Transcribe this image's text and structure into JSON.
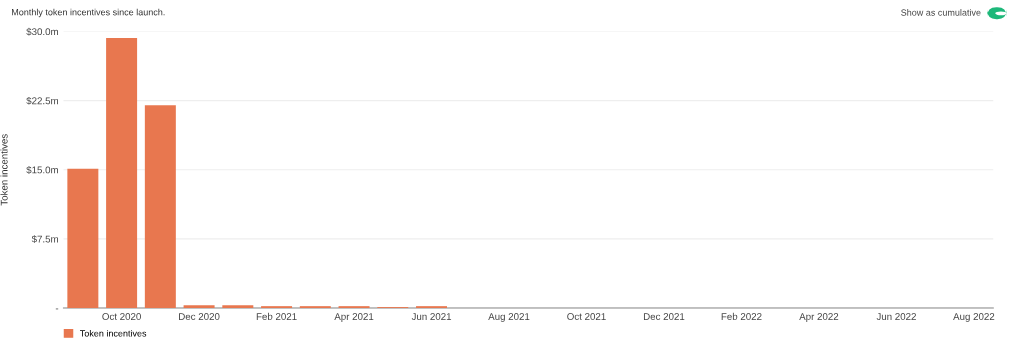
{
  "chart_data": {
    "type": "bar",
    "title": "Monthly token incentives since launch.",
    "ylabel": "Token incentives",
    "annotations": [
      "Show as cumulative"
    ],
    "categories": [
      null,
      "Oct 2020",
      null,
      "Dec 2020",
      null,
      "Feb 2021",
      null,
      "Apr 2021",
      null,
      "Jun 2021",
      null,
      "Aug 2021",
      null,
      "Oct 2021",
      null,
      "Dec 2021",
      null,
      "Feb 2022",
      null,
      "Apr 2022",
      null,
      "Jun 2022",
      null,
      "Aug 2022"
    ],
    "series": [
      {
        "name": "Token incentives",
        "color": "#e8774f",
        "values": [
          15.1,
          29.3,
          22.0,
          0.3,
          0.3,
          0.2,
          0.2,
          0.2,
          0.1,
          0.2,
          0,
          0,
          0,
          0,
          0,
          0,
          0,
          0,
          0,
          0,
          0,
          0,
          0,
          0
        ]
      }
    ],
    "ylim": [
      0,
      30
    ],
    "yticks": [
      {
        "value": 0,
        "label": "-"
      },
      {
        "value": 7.5,
        "label": "$7.5m"
      },
      {
        "value": 15,
        "label": "$15.0m"
      },
      {
        "value": 22.5,
        "label": "$22.5m"
      },
      {
        "value": 30,
        "label": "$30.0m"
      }
    ],
    "grid": "y",
    "legend": "bottom left"
  }
}
